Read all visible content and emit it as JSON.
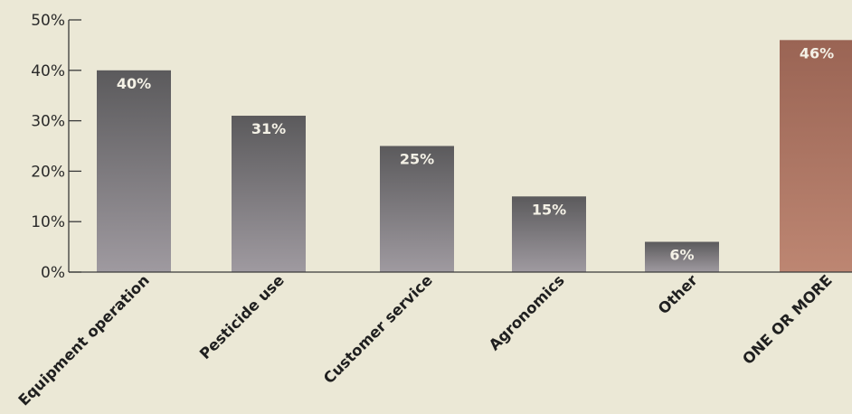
{
  "chart_data": {
    "type": "bar",
    "categories": [
      "Equipment operation",
      "Pesticide use",
      "Customer service",
      "Agronomics",
      "Other",
      "ONE OR MORE"
    ],
    "values": [
      40,
      31,
      25,
      15,
      6,
      46
    ],
    "data_labels": [
      "40%",
      "31%",
      "25%",
      "15%",
      "6%",
      "46%"
    ],
    "ylim": [
      0,
      50
    ],
    "yticks": [
      0,
      10,
      20,
      30,
      40,
      50
    ],
    "ytick_labels": [
      "0%",
      "10%",
      "20%",
      "30%",
      "40%",
      "50%"
    ],
    "title": "",
    "xlabel": "",
    "ylabel": "",
    "grid": false,
    "colors": {
      "bar": "#5b5a5c",
      "bar_light": "#9f9aa0",
      "highlight_bar": "#9a6454",
      "highlight_bar_light": "#bd8672",
      "background": "#ebe8d6"
    },
    "highlight_index": 5
  }
}
